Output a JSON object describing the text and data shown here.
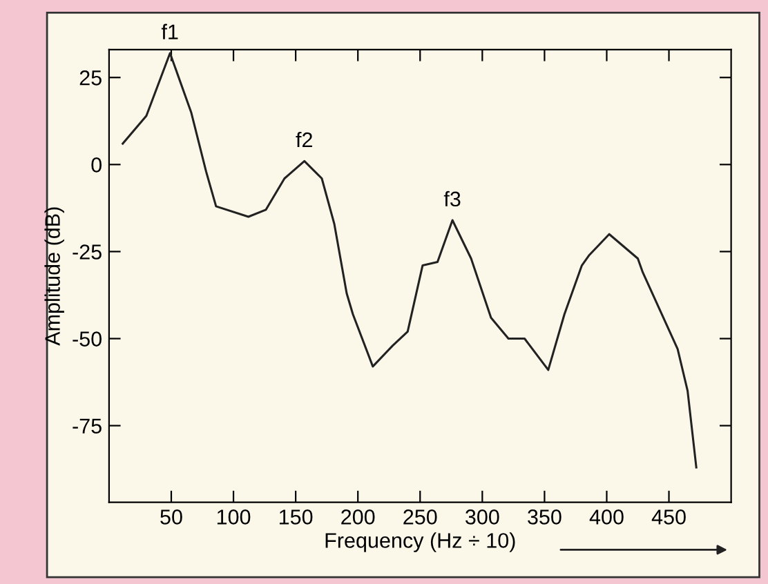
{
  "chart_data": {
    "type": "line",
    "xlabel": "Frequency (Hz ÷ 10)",
    "ylabel": "Amplitude (dB)",
    "x": [
      11,
      30,
      49,
      66,
      78,
      86,
      112,
      126,
      141,
      157,
      171,
      181,
      191,
      196,
      212,
      228,
      240,
      252,
      264,
      276,
      291,
      307,
      321,
      334,
      353,
      366,
      380,
      386,
      402,
      425,
      429,
      457,
      465,
      472
    ],
    "series": [
      {
        "color": "#222222",
        "values": [
          6,
          14,
          32,
          15,
          -2,
          -12,
          -15,
          -13,
          -4,
          1,
          -4,
          -17,
          -37,
          -43,
          -58,
          -52,
          -48,
          -29,
          -28,
          -16,
          -27,
          -44,
          -50,
          -50,
          -59,
          -43,
          -29,
          -26,
          -20,
          -27,
          -31,
          -53,
          -65,
          -87
        ]
      }
    ],
    "xlim": [
      0,
      500
    ],
    "ylim": [
      -97,
      33
    ],
    "xticks": [
      50,
      100,
      150,
      200,
      250,
      300,
      350,
      400,
      450
    ],
    "yticks": [
      25,
      0,
      -25,
      -50,
      -75
    ],
    "annotations": [
      {
        "text": "f1",
        "x": 49,
        "y": 32
      },
      {
        "text": "f2",
        "x": 157,
        "y": 1
      },
      {
        "text": "f3",
        "x": 276,
        "y": -16
      }
    ],
    "grid": false,
    "legend": false,
    "marker": "none",
    "line_style": "solid"
  }
}
